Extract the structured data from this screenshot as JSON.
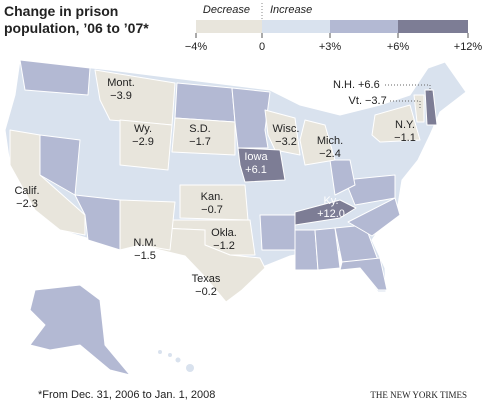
{
  "title_lines": [
    "Change in prison",
    "population, ’06 to ’07*"
  ],
  "legend": {
    "decrease_label": "Decrease",
    "increase_label": "Increase",
    "ticks": [
      "−4%",
      "0",
      "+3%",
      "+6%",
      "+12%"
    ]
  },
  "states": [
    {
      "name": "Mont.",
      "value": "−3.9"
    },
    {
      "name": "Wy.",
      "value": "−2.9"
    },
    {
      "name": "S.D.",
      "value": "−1.7"
    },
    {
      "name": "Wisc.",
      "value": "−3.2"
    },
    {
      "name": "Mich.",
      "value": "−2.4"
    },
    {
      "name": "N.Y.",
      "value": "−1.1"
    },
    {
      "name": "Iowa",
      "value": "+6.1"
    },
    {
      "name": "Calif.",
      "value": "−2.3"
    },
    {
      "name": "Kan.",
      "value": "−0.7"
    },
    {
      "name": "Okla.",
      "value": "−1.2"
    },
    {
      "name": "N.M.",
      "value": "−1.5"
    },
    {
      "name": "Texas",
      "value": "−0.2"
    },
    {
      "name": "Ky.",
      "value": "+12.0"
    },
    {
      "name": "N.H.",
      "value": "+6.6"
    },
    {
      "name": "Vt.",
      "value": "−3.7"
    }
  ],
  "footnote": "*From Dec. 31, 2006 to Jan. 1, 2008",
  "credit": "THE NEW YORK TIMES"
}
